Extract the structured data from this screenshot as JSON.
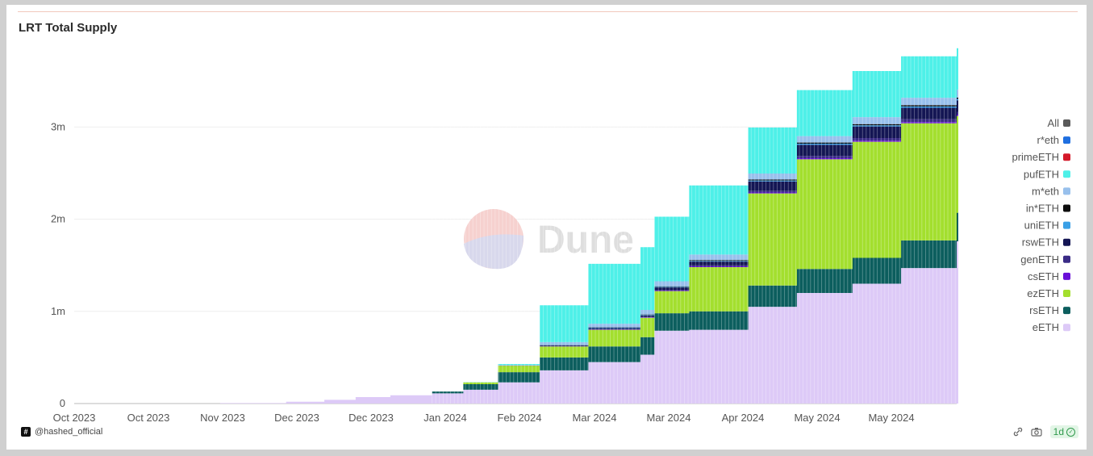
{
  "header": {
    "title": "LRT Total Supply"
  },
  "watermark": {
    "text": "Dune"
  },
  "footer": {
    "author": "@hashed_official",
    "interval": "1d"
  },
  "icons": [
    "dune-author-badge-icon",
    "link-icon",
    "camera-icon",
    "check-circle-icon"
  ],
  "chart_data": {
    "type": "area",
    "stacked": true,
    "title": "LRT Total Supply",
    "x_tick_labels": [
      "Oct 2023",
      "Oct 2023",
      "Nov 2023",
      "Dec 2023",
      "Dec 2023",
      "Jan 2024",
      "Feb 2024",
      "Mar 2024",
      "Mar 2024",
      "Apr 2024",
      "May 2024",
      "May 2024"
    ],
    "y_tick_labels": [
      "0",
      "1m",
      "2m",
      "3m"
    ],
    "ylim": [
      0,
      3800000
    ],
    "grid": "horizontal",
    "legend_position": "right",
    "legend": [
      {
        "name": "All",
        "color": "#5a5a5a"
      },
      {
        "name": "r*eth",
        "color": "#1f6fe0"
      },
      {
        "name": "primeETH",
        "color": "#d4192a"
      },
      {
        "name": "pufETH",
        "color": "#4ef0e8"
      },
      {
        "name": "m*eth",
        "color": "#98c0ec"
      },
      {
        "name": "in*ETH",
        "color": "#0d0d0d"
      },
      {
        "name": "uniETH",
        "color": "#3aa0e6"
      },
      {
        "name": "rswETH",
        "color": "#141654"
      },
      {
        "name": "genETH",
        "color": "#3a2b86"
      },
      {
        "name": "csETH",
        "color": "#6a10d8"
      },
      {
        "name": "ezETH",
        "color": "#a3df2e"
      },
      {
        "name": "rsETH",
        "color": "#0c5e5e"
      },
      {
        "name": "eETH",
        "color": "#ddcaf7"
      }
    ],
    "x": [
      "2023-10-01",
      "2023-11-01",
      "2023-11-20",
      "2023-12-01",
      "2023-12-10",
      "2023-12-20",
      "2024-01-01",
      "2024-01-10",
      "2024-01-20",
      "2024-02-01",
      "2024-02-15",
      "2024-03-01",
      "2024-03-05",
      "2024-03-15",
      "2024-04-01",
      "2024-04-15",
      "2024-05-01",
      "2024-05-15",
      "2024-05-31"
    ],
    "series": [
      {
        "name": "eETH",
        "values": [
          0,
          5000,
          20000,
          40000,
          70000,
          90000,
          110000,
          150000,
          230000,
          360000,
          450000,
          530000,
          790000,
          800000,
          1050000,
          1200000,
          1300000,
          1470000,
          1760000
        ]
      },
      {
        "name": "rsETH",
        "values": [
          0,
          0,
          0,
          0,
          0,
          0,
          20000,
          60000,
          110000,
          140000,
          170000,
          190000,
          190000,
          200000,
          230000,
          260000,
          280000,
          300000,
          310000
        ]
      },
      {
        "name": "ezETH",
        "values": [
          0,
          0,
          0,
          0,
          0,
          0,
          0,
          20000,
          70000,
          120000,
          180000,
          210000,
          240000,
          480000,
          1000000,
          1190000,
          1260000,
          1270000,
          1050000
        ]
      },
      {
        "name": "csETH",
        "values": [
          0,
          0,
          0,
          0,
          0,
          0,
          0,
          0,
          0,
          2000,
          4000,
          5000,
          6000,
          8000,
          10000,
          12000,
          13000,
          14000,
          15000
        ]
      },
      {
        "name": "genETH",
        "values": [
          0,
          0,
          0,
          0,
          0,
          0,
          0,
          0,
          1000,
          3000,
          5000,
          7000,
          9000,
          12000,
          20000,
          25000,
          28000,
          30000,
          30000
        ]
      },
      {
        "name": "rswETH",
        "values": [
          0,
          0,
          0,
          0,
          0,
          0,
          0,
          0,
          2000,
          6000,
          10000,
          15000,
          25000,
          40000,
          100000,
          120000,
          125000,
          125000,
          125000
        ]
      },
      {
        "name": "uniETH",
        "values": [
          0,
          0,
          0,
          0,
          0,
          0,
          0,
          0,
          1000,
          3000,
          4000,
          5000,
          6000,
          8000,
          10000,
          12000,
          13000,
          14000,
          15000
        ]
      },
      {
        "name": "in*ETH",
        "values": [
          0,
          0,
          0,
          0,
          0,
          0,
          0,
          0,
          0,
          2000,
          3000,
          4000,
          6000,
          8000,
          10000,
          12000,
          13000,
          14000,
          15000
        ]
      },
      {
        "name": "m*eth",
        "values": [
          0,
          0,
          0,
          0,
          0,
          0,
          0,
          0,
          5000,
          30000,
          40000,
          50000,
          55000,
          60000,
          65000,
          70000,
          75000,
          80000,
          85000
        ]
      },
      {
        "name": "pufETH",
        "values": [
          0,
          0,
          0,
          0,
          0,
          0,
          0,
          2000,
          10000,
          400000,
          650000,
          680000,
          700000,
          750000,
          500000,
          500000,
          500000,
          450000,
          450000
        ]
      },
      {
        "name": "primeETH",
        "values": [
          0,
          0,
          0,
          0,
          0,
          0,
          0,
          0,
          0,
          0,
          0,
          0,
          0,
          0,
          0,
          0,
          0,
          0,
          0
        ]
      },
      {
        "name": "r*eth",
        "values": [
          0,
          0,
          0,
          0,
          0,
          0,
          0,
          0,
          0,
          0,
          0,
          0,
          0,
          0,
          0,
          0,
          0,
          0,
          0
        ]
      }
    ]
  }
}
